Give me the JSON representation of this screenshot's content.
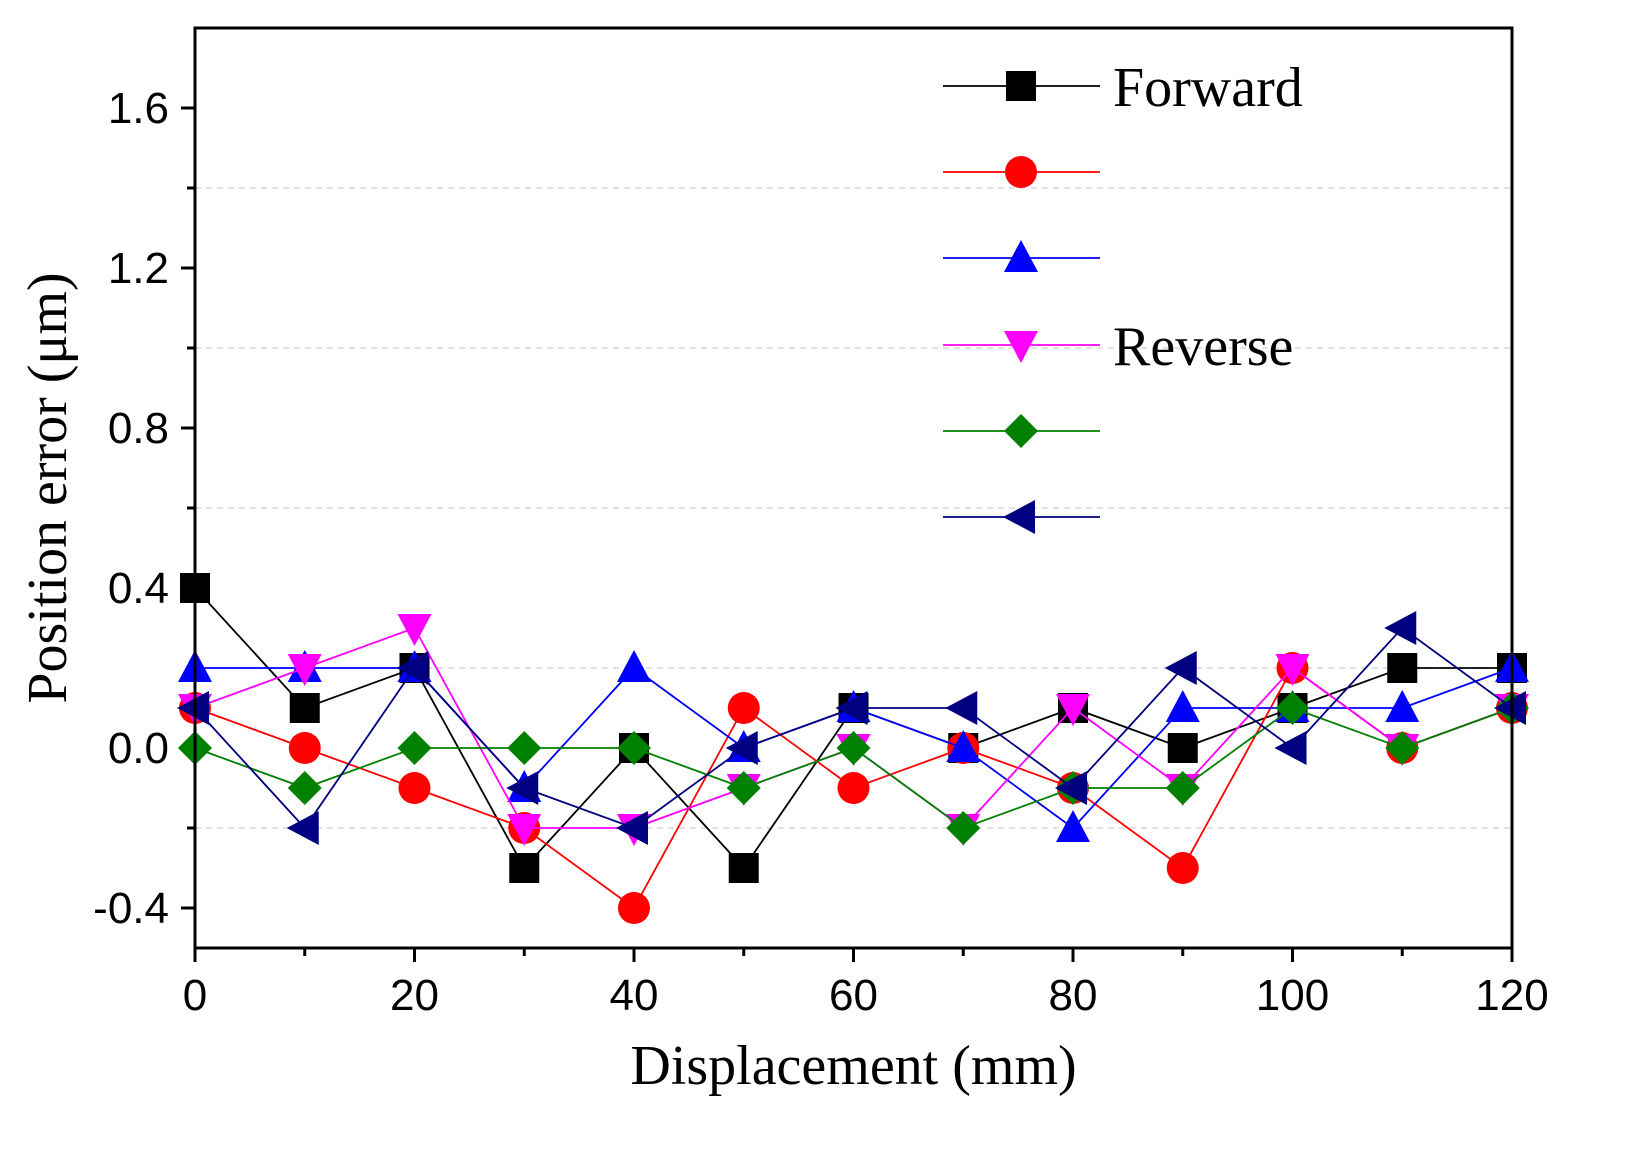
{
  "chart_data": {
    "type": "line",
    "xlabel": "Displacement (mm)",
    "ylabel": "Position error (μm)",
    "xlim": [
      0,
      120
    ],
    "ylim": [
      -0.5,
      1.8
    ],
    "xticks": [
      0,
      20,
      40,
      60,
      80,
      100,
      120
    ],
    "yticks": [
      -0.4,
      0.0,
      0.4,
      0.8,
      1.2,
      1.6
    ],
    "x_tick_labels": [
      "0",
      "20",
      "40",
      "60",
      "80",
      "100",
      "120"
    ],
    "y_tick_labels": [
      "-0.4",
      "0.0",
      "0.4",
      "0.8",
      "1.2",
      "1.6"
    ],
    "grid": "dashed horizontal",
    "legend_position": "top-right",
    "legend_group_labels": [
      "Forward",
      "Reverse"
    ],
    "x": [
      0,
      10,
      20,
      30,
      40,
      50,
      60,
      70,
      80,
      90,
      100,
      110,
      120
    ],
    "series": [
      {
        "color": "#000000",
        "marker": "square",
        "values": [
          0.4,
          0.1,
          0.2,
          -0.3,
          0.0,
          -0.3,
          0.1,
          0.0,
          0.1,
          0.0,
          0.1,
          0.2,
          0.2
        ]
      },
      {
        "color": "#ff0000",
        "marker": "circle",
        "values": [
          0.1,
          0.0,
          -0.1,
          -0.2,
          -0.4,
          0.1,
          -0.1,
          0.0,
          -0.1,
          -0.3,
          0.2,
          0.0,
          0.1
        ]
      },
      {
        "color": "#0000ff",
        "marker": "triangle-up",
        "values": [
          0.2,
          0.2,
          0.2,
          -0.1,
          0.2,
          0.0,
          0.1,
          0.0,
          -0.2,
          0.1,
          0.1,
          0.1,
          0.2
        ]
      },
      {
        "color": "#ff00ff",
        "marker": "triangle-down",
        "values": [
          0.1,
          0.2,
          0.3,
          -0.2,
          -0.2,
          -0.1,
          0.0,
          -0.2,
          0.1,
          -0.1,
          0.2,
          0.0,
          0.1
        ]
      },
      {
        "color": "#008000",
        "marker": "diamond",
        "values": [
          0.0,
          -0.1,
          0.0,
          0.0,
          0.0,
          -0.1,
          0.0,
          -0.2,
          -0.1,
          -0.1,
          0.1,
          0.0,
          0.1
        ]
      },
      {
        "color": "#000080",
        "marker": "triangle-left",
        "values": [
          0.1,
          -0.2,
          0.2,
          -0.1,
          -0.2,
          0.0,
          0.1,
          0.1,
          -0.1,
          0.2,
          0.0,
          0.3,
          0.1
        ]
      }
    ]
  }
}
